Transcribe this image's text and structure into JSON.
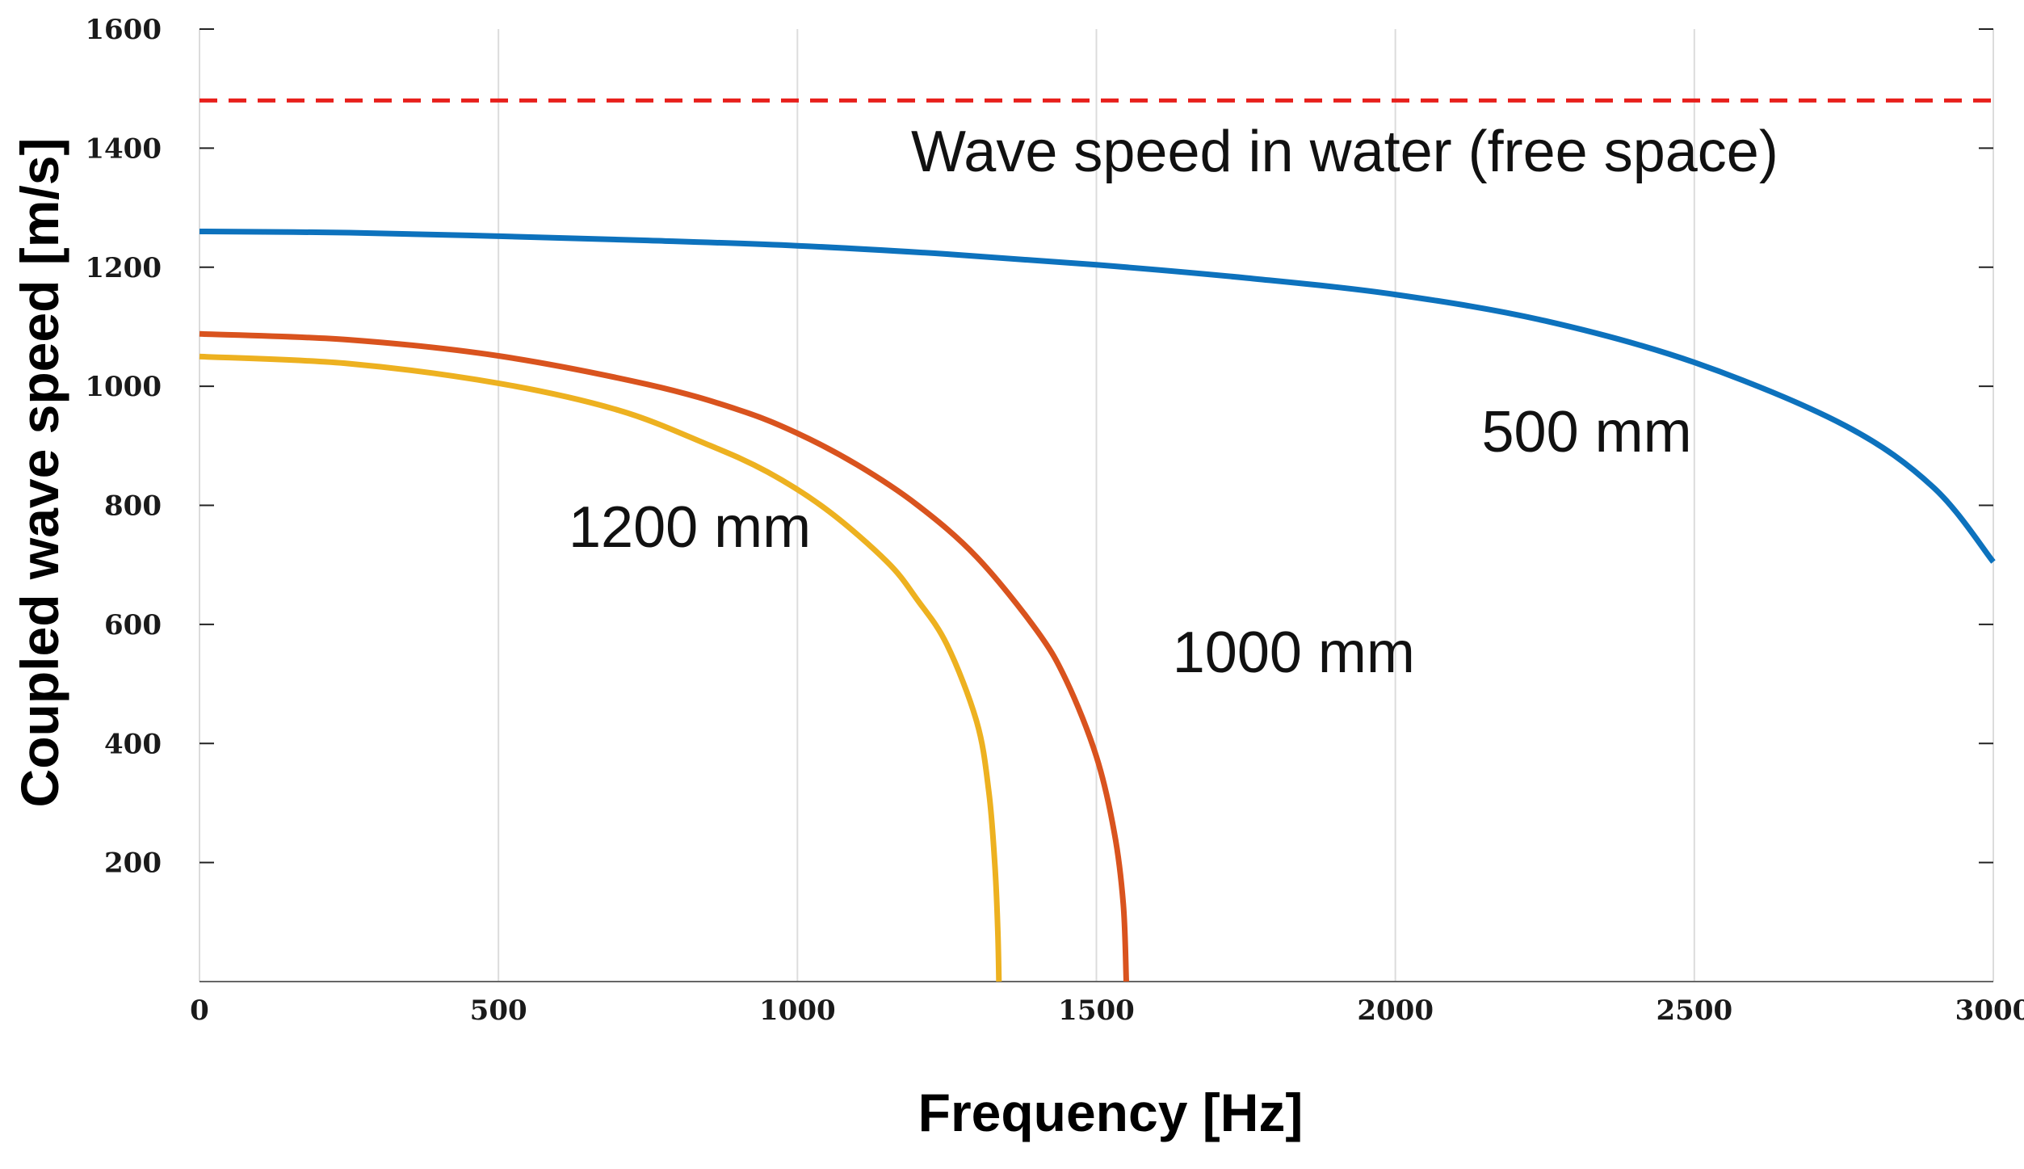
{
  "chart_data": {
    "type": "line",
    "title": "",
    "xlabel": "Frequency [Hz]",
    "ylabel": "Coupled wave speed [m/s]",
    "xlim": [
      0,
      3000
    ],
    "ylim": [
      0,
      1600
    ],
    "grid": true,
    "x_ticks": [
      0,
      500,
      1000,
      1500,
      2000,
      2500,
      3000
    ],
    "y_ticks": [
      200,
      400,
      600,
      800,
      1000,
      1200,
      1400,
      1600
    ],
    "reference_line": {
      "label": "Wave speed in water (free space)",
      "value": 1480,
      "color": "#e8201c"
    },
    "series": [
      {
        "name": "500 mm",
        "color": "#0d72bd",
        "points": [
          [
            0,
            1260
          ],
          [
            250,
            1258
          ],
          [
            500,
            1252
          ],
          [
            750,
            1245
          ],
          [
            1000,
            1236
          ],
          [
            1250,
            1222
          ],
          [
            1500,
            1204
          ],
          [
            1750,
            1182
          ],
          [
            2000,
            1154
          ],
          [
            2250,
            1110
          ],
          [
            2500,
            1040
          ],
          [
            2750,
            935
          ],
          [
            2900,
            830
          ],
          [
            3000,
            705
          ]
        ]
      },
      {
        "name": "1000 mm",
        "color": "#d9531e",
        "points": [
          [
            0,
            1088
          ],
          [
            250,
            1078
          ],
          [
            500,
            1051
          ],
          [
            750,
            1003
          ],
          [
            900,
            961
          ],
          [
            1000,
            921
          ],
          [
            1100,
            868
          ],
          [
            1200,
            801
          ],
          [
            1300,
            713
          ],
          [
            1400,
            590
          ],
          [
            1450,
            505
          ],
          [
            1500,
            378
          ],
          [
            1530,
            250
          ],
          [
            1545,
            130
          ],
          [
            1550,
            0
          ]
        ]
      },
      {
        "name": "1200 mm",
        "color": "#edb120",
        "points": [
          [
            0,
            1050
          ],
          [
            250,
            1038
          ],
          [
            500,
            1005
          ],
          [
            700,
            960
          ],
          [
            850,
            902
          ],
          [
            950,
            856
          ],
          [
            1050,
            792
          ],
          [
            1150,
            705
          ],
          [
            1200,
            642
          ],
          [
            1250,
            566
          ],
          [
            1300,
            436
          ],
          [
            1320,
            320
          ],
          [
            1330,
            200
          ],
          [
            1335,
            90
          ],
          [
            1337,
            0
          ]
        ]
      }
    ],
    "annotations": [
      {
        "text": "500 mm",
        "x": 2320,
        "y": 890
      },
      {
        "text": "1000 mm",
        "x": 1830,
        "y": 520
      },
      {
        "text": "1200 mm",
        "x": 820,
        "y": 730
      }
    ]
  }
}
